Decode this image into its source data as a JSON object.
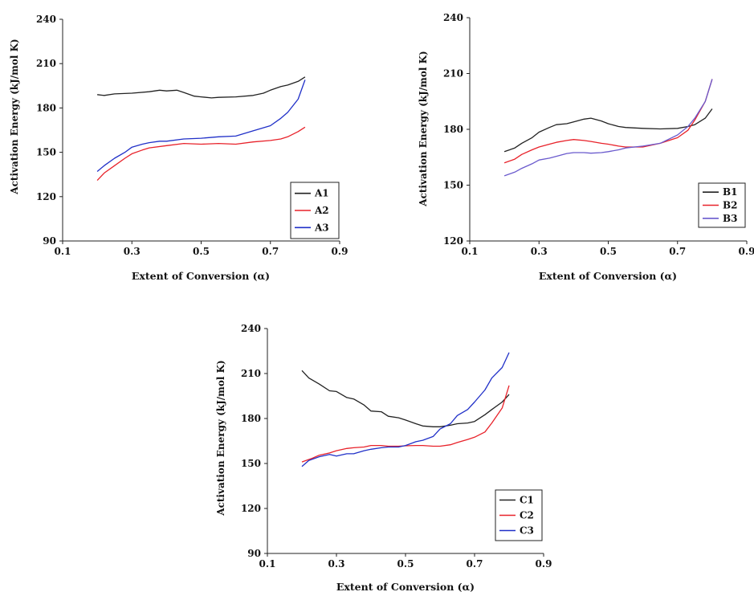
{
  "chart_data": [
    {
      "type": "line",
      "xlabel": "Extent of Conversion (α)",
      "ylabel": "Activation Energy (kJ/mol K)",
      "xlim": [
        0.1,
        0.9
      ],
      "ylim": [
        90,
        240
      ],
      "xticks": [
        "0.1",
        "0.3",
        "0.5",
        "0.7",
        "0.9"
      ],
      "yticks": [
        "90",
        "120",
        "150",
        "180",
        "210",
        "240"
      ],
      "legend_position": "bottom-right",
      "series": [
        {
          "name": "A1",
          "color": "#222222",
          "x": [
            0.2,
            0.22,
            0.25,
            0.3,
            0.35,
            0.38,
            0.4,
            0.43,
            0.45,
            0.48,
            0.5,
            0.53,
            0.55,
            0.6,
            0.65,
            0.68,
            0.7,
            0.73,
            0.75,
            0.78,
            0.8
          ],
          "y": [
            189,
            188.5,
            189.5,
            190,
            191,
            192,
            191.5,
            192,
            190.5,
            188,
            187.5,
            186.8,
            187.2,
            187.5,
            188.5,
            190,
            192,
            194.5,
            195.5,
            198,
            201
          ]
        },
        {
          "name": "A2",
          "color": "#e8222a",
          "x": [
            0.2,
            0.22,
            0.25,
            0.28,
            0.3,
            0.33,
            0.35,
            0.4,
            0.45,
            0.5,
            0.55,
            0.6,
            0.65,
            0.7,
            0.73,
            0.75,
            0.78,
            0.8
          ],
          "y": [
            131,
            136,
            141,
            146,
            149,
            151.5,
            153,
            154.5,
            156,
            155.5,
            156,
            155.5,
            157,
            158,
            159,
            160.5,
            164,
            167
          ]
        },
        {
          "name": "A3",
          "color": "#2030c8",
          "x": [
            0.2,
            0.22,
            0.25,
            0.28,
            0.3,
            0.33,
            0.35,
            0.38,
            0.4,
            0.45,
            0.5,
            0.55,
            0.6,
            0.65,
            0.7,
            0.73,
            0.75,
            0.78,
            0.8
          ],
          "y": [
            137,
            141,
            146,
            150,
            153.5,
            155.5,
            156.5,
            157.5,
            157.5,
            159,
            159.5,
            160.5,
            161,
            164.5,
            168,
            173,
            177,
            186,
            199
          ]
        }
      ]
    },
    {
      "type": "line",
      "xlabel": "Extent of Conversion (α)",
      "ylabel": "Activation Energy (kJ/mol K)",
      "xlim": [
        0.1,
        0.9
      ],
      "ylim": [
        120,
        240
      ],
      "xticks": [
        "0.1",
        "0.3",
        "0.5",
        "0.7",
        "0.9"
      ],
      "yticks": [
        "120",
        "150",
        "180",
        "210",
        "240"
      ],
      "legend_position": "bottom-right",
      "series": [
        {
          "name": "B1",
          "color": "#222222",
          "x": [
            0.2,
            0.23,
            0.25,
            0.28,
            0.3,
            0.33,
            0.35,
            0.38,
            0.4,
            0.43,
            0.45,
            0.48,
            0.5,
            0.53,
            0.55,
            0.6,
            0.65,
            0.7,
            0.73,
            0.75,
            0.78,
            0.8
          ],
          "y": [
            168,
            170,
            172.5,
            175.5,
            178.5,
            181,
            182.5,
            183,
            184,
            185.5,
            186,
            184.5,
            183,
            181.5,
            181,
            180.5,
            180.2,
            180.5,
            181.5,
            182.5,
            186,
            191
          ]
        },
        {
          "name": "B2",
          "color": "#e8222a",
          "x": [
            0.2,
            0.23,
            0.25,
            0.28,
            0.3,
            0.33,
            0.35,
            0.38,
            0.4,
            0.43,
            0.45,
            0.48,
            0.5,
            0.53,
            0.55,
            0.6,
            0.65,
            0.7,
            0.73,
            0.75,
            0.78,
            0.8
          ],
          "y": [
            162,
            164,
            166.5,
            169,
            170.5,
            172,
            173,
            174,
            174.5,
            174,
            173.5,
            172.5,
            172,
            171,
            170.5,
            170.5,
            172.5,
            175.5,
            179.5,
            185,
            195,
            207
          ]
        },
        {
          "name": "B3",
          "color": "#6a5acd",
          "x": [
            0.2,
            0.23,
            0.25,
            0.28,
            0.3,
            0.33,
            0.35,
            0.38,
            0.4,
            0.43,
            0.45,
            0.48,
            0.5,
            0.53,
            0.55,
            0.6,
            0.65,
            0.7,
            0.73,
            0.75,
            0.78,
            0.8
          ],
          "y": [
            155,
            157,
            159,
            161.5,
            163.5,
            164.5,
            165.5,
            167,
            167.5,
            167.5,
            167.2,
            167.5,
            168,
            169,
            170,
            171,
            172.5,
            177,
            181.5,
            186,
            195,
            207
          ]
        }
      ]
    },
    {
      "type": "line",
      "xlabel": "Extent of Conversion (α)",
      "ylabel": "Activation Energy (kJ/mol K)",
      "xlim": [
        0.1,
        0.9
      ],
      "ylim": [
        90,
        240
      ],
      "xticks": [
        "0.1",
        "0.3",
        "0.5",
        "0.7",
        "0.9"
      ],
      "yticks": [
        "90",
        "120",
        "150",
        "180",
        "210",
        "240"
      ],
      "legend_position": "bottom-right",
      "series": [
        {
          "name": "C1",
          "color": "#222222",
          "x": [
            0.2,
            0.22,
            0.25,
            0.28,
            0.3,
            0.33,
            0.35,
            0.38,
            0.4,
            0.43,
            0.45,
            0.48,
            0.5,
            0.53,
            0.55,
            0.58,
            0.6,
            0.63,
            0.65,
            0.68,
            0.7,
            0.73,
            0.75,
            0.78,
            0.8
          ],
          "y": [
            212,
            207,
            203,
            198.5,
            198,
            194,
            193,
            189,
            185,
            184.5,
            181.5,
            180.5,
            179,
            176.5,
            175,
            174.5,
            174.5,
            175.5,
            176.5,
            177,
            178,
            182.5,
            186,
            191,
            196
          ]
        },
        {
          "name": "C2",
          "color": "#e8222a",
          "x": [
            0.2,
            0.23,
            0.25,
            0.28,
            0.3,
            0.33,
            0.35,
            0.38,
            0.4,
            0.43,
            0.45,
            0.48,
            0.5,
            0.53,
            0.55,
            0.58,
            0.6,
            0.63,
            0.65,
            0.68,
            0.7,
            0.73,
            0.75,
            0.78,
            0.8
          ],
          "y": [
            151,
            153.5,
            155.5,
            157,
            158.5,
            160,
            160.5,
            161,
            162,
            162,
            161.5,
            161.5,
            161.8,
            162,
            162,
            161.5,
            161.5,
            162.5,
            164,
            166,
            167.5,
            171,
            177,
            187,
            202
          ]
        },
        {
          "name": "C3",
          "color": "#2030c8",
          "x": [
            0.2,
            0.22,
            0.25,
            0.28,
            0.3,
            0.33,
            0.35,
            0.38,
            0.4,
            0.43,
            0.45,
            0.48,
            0.5,
            0.53,
            0.55,
            0.58,
            0.6,
            0.63,
            0.65,
            0.68,
            0.7,
            0.73,
            0.75,
            0.78,
            0.8
          ],
          "y": [
            148,
            152,
            154.5,
            156,
            155,
            156.5,
            156.5,
            158.5,
            159.5,
            160.5,
            161,
            161,
            162,
            164.5,
            165.5,
            168,
            173,
            176.5,
            182,
            186,
            191,
            199,
            207,
            214,
            224
          ]
        }
      ]
    }
  ]
}
